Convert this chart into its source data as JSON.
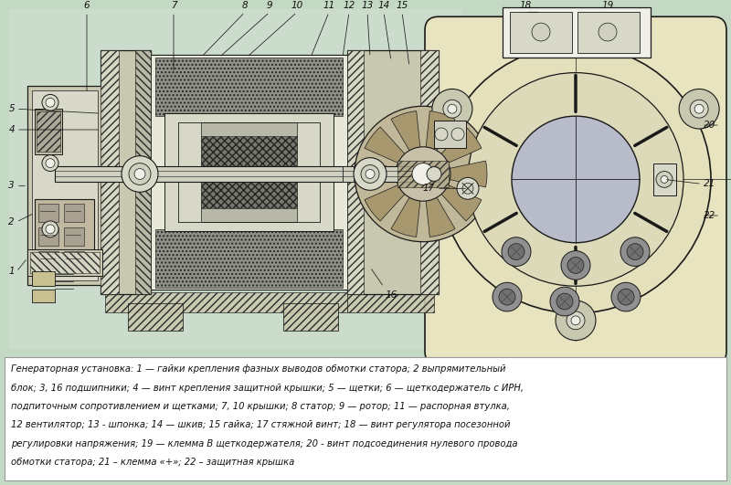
{
  "bg_color": "#c4d9c4",
  "text_box_bg": "#ffffff",
  "fig_width": 8.0,
  "fig_height": 5.31,
  "line_color": "#1a1a1a",
  "label_color": "#111111",
  "caption_text_line1": "Генераторная установка: 1 — гайки крепления фазных выводов обмотки статора; 2 выпрямительный",
  "caption_text_line2": "блок; 3, 16 подшипники; 4 — винт крепления защитной крышки; 5 — щетки; 6 — щеткодержатель с ИРН,",
  "caption_text_line3": "подпиточным сопротивлением и щетками; 7, 10 крышки; 8 статор; 9 — ротор; 11 — распорная втулка,",
  "caption_text_line4": "12 вентилятор; 13 - шпонка; 14 — шкив; 15 гайка; 17 стяжной винт; 18 — винт регулятора посезонной",
  "caption_text_line5": "регулировки напряжения; 19 — клемма В щеткодержателя; 20 - винт подсоединения нулевого провода",
  "caption_text_line6": "обмотки статора; 21 – клемма «+»; 22 – защитная крышка",
  "left_bg_color": "#ccdccc",
  "right_bg_color": "#e8e8c8",
  "housing_color": "#c8c8b0",
  "stator_color": "#d0d0c0",
  "rotor_color": "#b8bcca",
  "winding_color": "#888880",
  "fan_color": "#c0b898",
  "rectifier_color": "#c0b8a0",
  "label_fs": 7.5,
  "caption_fs": 7.2
}
